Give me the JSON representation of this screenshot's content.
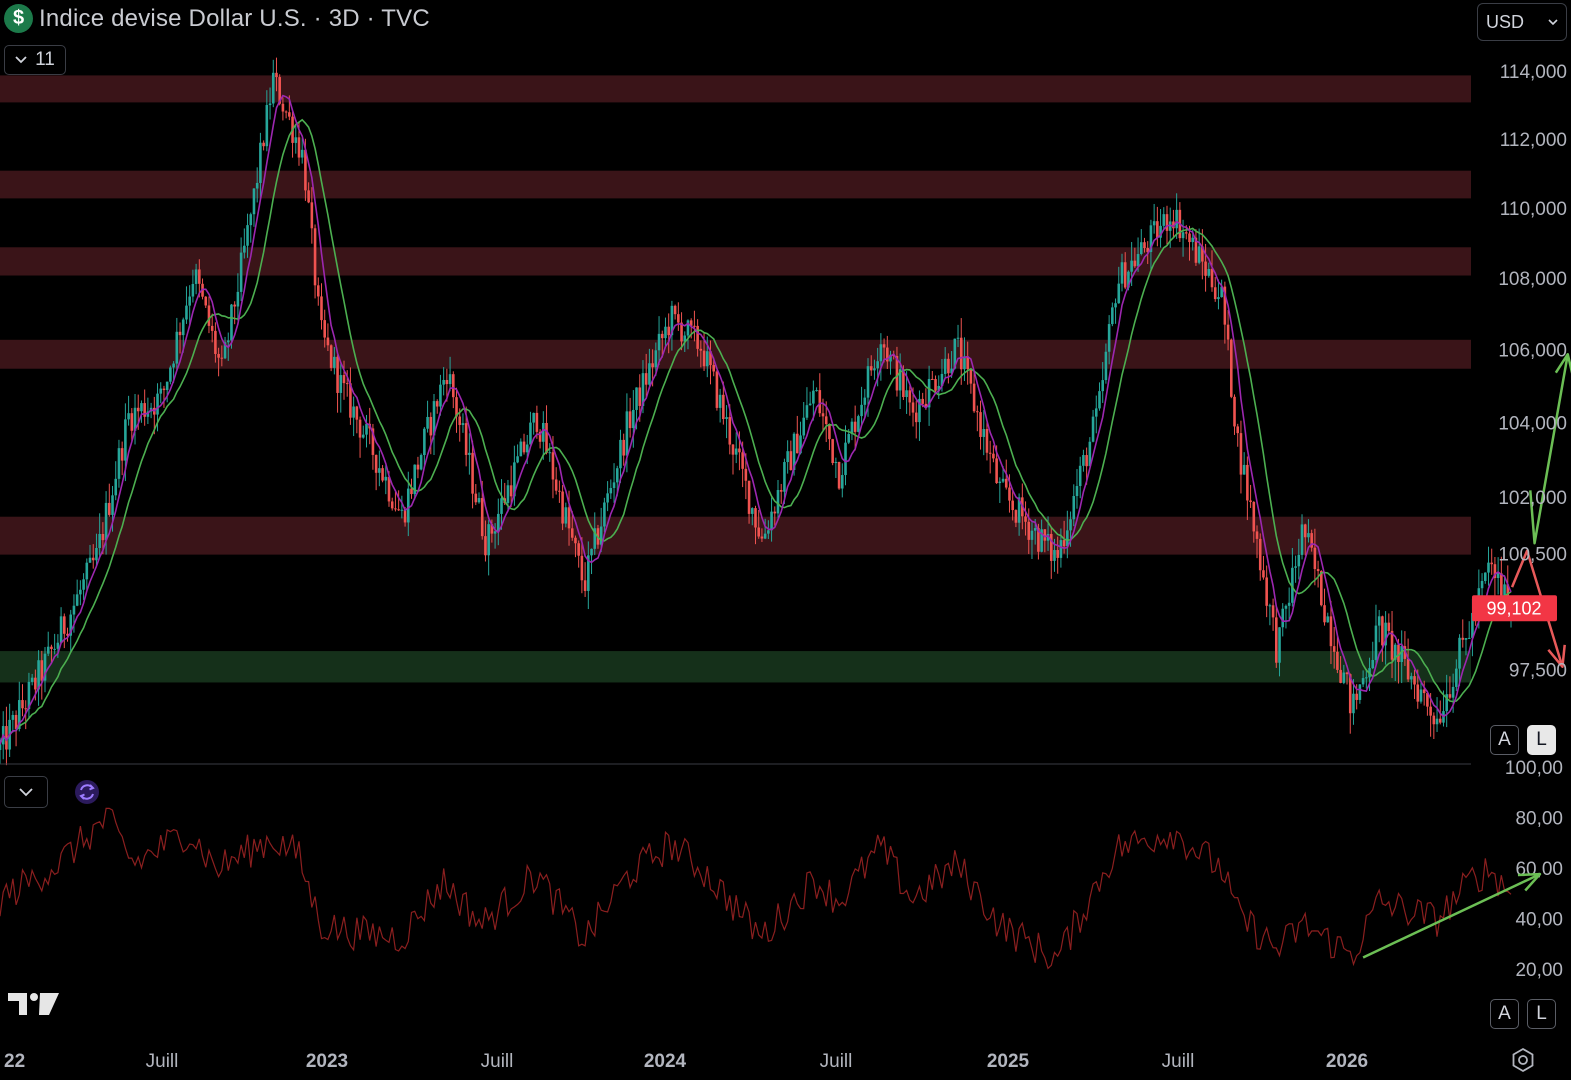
{
  "header": {
    "symbol_icon": "dollar-icon",
    "title": "Indice devise Dollar U.S. · 3D · TVC",
    "indicator_count": "11",
    "currency": "USD"
  },
  "scale_buttons": {
    "auto_label": "A",
    "log_label": "L"
  },
  "colors": {
    "background": "#000000",
    "up_candle": "#26a69a",
    "down_candle": "#ef5350",
    "resistance_zone": "#3a1418",
    "support_zone": "#15301a",
    "fast_ma": "#9c27b0",
    "slow_ma": "#4caf50",
    "rsi_line": "#8b1f1f",
    "bull_arrow": "#6cbf55",
    "bear_arrow": "#e85a5a",
    "last_price_bg": "#f23645"
  },
  "chart_data": [
    {
      "type": "candlestick",
      "title": "Indice devise Dollar U.S. · 3D · TVC",
      "interval": "3D",
      "x_ticks": [
        "22",
        "Juill",
        "2023",
        "Juill",
        "2024",
        "Juill",
        "2025",
        "Juill",
        "2026"
      ],
      "x_range": [
        "2022-01-15",
        "2026-01-20"
      ],
      "y_ticks": [
        "114,000",
        "112,000",
        "110,000",
        "108,000",
        "106,000",
        "104,000",
        "102,000",
        "100,500",
        "97,500"
      ],
      "y_scale": "log",
      "y_range": [
        95.7,
        115.5
      ],
      "last_price": "99,102",
      "price_path": [
        [
          "2022-01-15",
          95.5
        ],
        [
          "2022-03-01",
          97.8
        ],
        [
          "2022-04-15",
          100.4
        ],
        [
          "2022-05-15",
          104.2
        ],
        [
          "2022-06-15",
          104.7
        ],
        [
          "2022-07-15",
          108.2
        ],
        [
          "2022-08-10",
          105.4
        ],
        [
          "2022-09-05",
          109.6
        ],
        [
          "2022-09-27",
          113.8
        ],
        [
          "2022-10-25",
          111.5
        ],
        [
          "2022-11-10",
          106.5
        ],
        [
          "2022-12-01",
          104.9
        ],
        [
          "2022-12-30",
          103.2
        ],
        [
          "2023-01-25",
          101.5
        ],
        [
          "2023-03-08",
          105.5
        ],
        [
          "2023-04-14",
          100.8
        ],
        [
          "2023-05-31",
          104.2
        ],
        [
          "2023-07-14",
          99.7
        ],
        [
          "2023-08-25",
          104.1
        ],
        [
          "2023-10-03",
          106.9
        ],
        [
          "2023-11-01",
          106.1
        ],
        [
          "2023-12-27",
          100.9
        ],
        [
          "2024-02-14",
          104.9
        ],
        [
          "2024-03-08",
          102.7
        ],
        [
          "2024-04-16",
          106.4
        ],
        [
          "2024-05-15",
          104.3
        ],
        [
          "2024-06-26",
          106.1
        ],
        [
          "2024-08-05",
          102.2
        ],
        [
          "2024-09-27",
          100.4
        ],
        [
          "2024-11-05",
          104.3
        ],
        [
          "2024-11-22",
          107.9
        ],
        [
          "2025-01-13",
          109.9
        ],
        [
          "2025-02-28",
          107.5
        ],
        [
          "2025-03-15",
          103.5
        ],
        [
          "2025-04-21",
          98.0
        ],
        [
          "2025-05-15",
          101.2
        ],
        [
          "2025-06-30",
          96.5
        ],
        [
          "2025-07-25",
          98.6
        ],
        [
          "2025-09-17",
          96.3
        ],
        [
          "2025-10-20",
          98.8
        ],
        [
          "2025-11-05",
          100.2
        ],
        [
          "2025-11-25",
          99.1
        ]
      ],
      "overlays": [
        "fast moving average",
        "slow moving average"
      ],
      "zones": [
        {
          "kind": "resistance",
          "range": [
            113.1,
            113.9
          ]
        },
        {
          "kind": "resistance",
          "range": [
            110.3,
            111.1
          ]
        },
        {
          "kind": "resistance",
          "range": [
            108.1,
            108.9
          ]
        },
        {
          "kind": "resistance",
          "range": [
            105.5,
            106.3
          ]
        },
        {
          "kind": "resistance",
          "range": [
            100.5,
            101.5
          ]
        },
        {
          "kind": "support",
          "range": [
            97.2,
            98.0
          ]
        }
      ],
      "annotations": [
        {
          "kind": "arrow",
          "color": "bear",
          "points": [
            [
              "2025-11-26",
              99.65
            ],
            [
              "2025-12-10",
              100.6
            ],
            [
              "2026-01-12",
              97.6
            ]
          ]
        },
        {
          "kind": "arrow",
          "color": "bull",
          "points": [
            [
              "2025-12-13",
              102.2
            ],
            [
              "2025-12-17",
              100.8
            ],
            [
              "2026-01-17",
              105.9
            ]
          ]
        }
      ]
    },
    {
      "type": "line",
      "name": "RSI",
      "y_ticks": [
        "100,00",
        "80,00",
        "60,00",
        "40,00",
        "20,00"
      ],
      "y_range": [
        5,
        100
      ],
      "path": [
        [
          "2022-01-15",
          48
        ],
        [
          "2022-03-10",
          62
        ],
        [
          "2022-04-25",
          80
        ],
        [
          "2022-05-20",
          62
        ],
        [
          "2022-07-10",
          75
        ],
        [
          "2022-08-05",
          60
        ],
        [
          "2022-09-25",
          72
        ],
        [
          "2022-10-20",
          66
        ],
        [
          "2022-11-10",
          38
        ],
        [
          "2022-12-10",
          35
        ],
        [
          "2023-01-25",
          33
        ],
        [
          "2023-03-05",
          55
        ],
        [
          "2023-04-10",
          38
        ],
        [
          "2023-05-30",
          58
        ],
        [
          "2023-07-14",
          32
        ],
        [
          "2023-08-25",
          58
        ],
        [
          "2023-10-03",
          70
        ],
        [
          "2023-11-01",
          60
        ],
        [
          "2023-12-27",
          33
        ],
        [
          "2024-02-14",
          56
        ],
        [
          "2024-03-08",
          47
        ],
        [
          "2024-04-16",
          69
        ],
        [
          "2024-05-15",
          48
        ],
        [
          "2024-06-26",
          62
        ],
        [
          "2024-08-05",
          38
        ],
        [
          "2024-09-27",
          24
        ],
        [
          "2024-11-05",
          55
        ],
        [
          "2024-11-22",
          68
        ],
        [
          "2025-01-13",
          75
        ],
        [
          "2025-02-28",
          60
        ],
        [
          "2025-03-15",
          42
        ],
        [
          "2025-04-21",
          28
        ],
        [
          "2025-05-15",
          38
        ],
        [
          "2025-06-30",
          26
        ],
        [
          "2025-07-25",
          47
        ],
        [
          "2025-09-17",
          40
        ],
        [
          "2025-10-20",
          56
        ],
        [
          "2025-11-05",
          60
        ],
        [
          "2025-11-25",
          50
        ]
      ],
      "annotations": [
        {
          "kind": "arrow",
          "color": "bull",
          "points": [
            [
              "2025-07-10",
              25
            ],
            [
              "2025-12-22",
              58
            ]
          ]
        }
      ]
    }
  ]
}
